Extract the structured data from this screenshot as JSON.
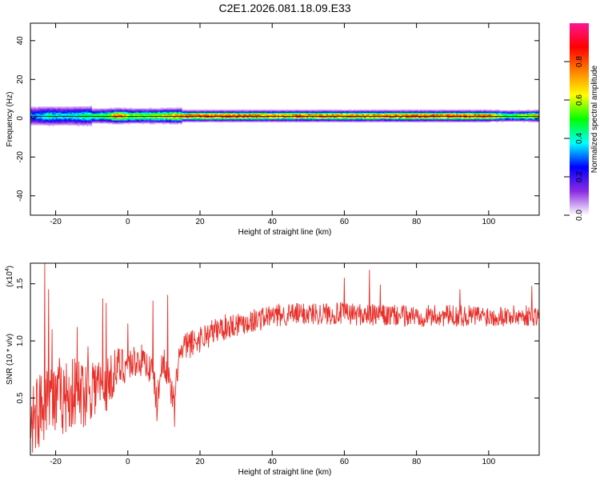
{
  "title": "C2E1.2026.081.18.09.E33",
  "chart_data": [
    {
      "type": "heatmap",
      "xlabel": "Height of straight line (km)",
      "ylabel": "Frequency (Hz)",
      "xlim": [
        -27,
        114
      ],
      "ylim": [
        -50,
        49
      ],
      "xticks": [
        -20,
        0,
        20,
        40,
        60,
        80,
        100
      ],
      "yticks": [
        -40,
        -20,
        0,
        20,
        40
      ],
      "reference_line_y": 1,
      "colorbar": {
        "label": "Normalized spectral amplitude",
        "range": [
          0,
          1
        ],
        "ticks": [
          0.0,
          0.2,
          0.4,
          0.6,
          0.8
        ],
        "colors": [
          "#ffffff",
          "#8a2be2",
          "#0000ff",
          "#00ffff",
          "#00ff00",
          "#ffff00",
          "#ff8000",
          "#ff0000",
          "#ff1493"
        ]
      },
      "band": {
        "center_freq_hz": 1,
        "half_width_hz": 2,
        "peak_level_by_height": [
          [
            -26,
            0.35
          ],
          [
            -22,
            0.45
          ],
          [
            -18,
            0.4
          ],
          [
            -14,
            0.45
          ],
          [
            -10,
            0.5
          ],
          [
            -6,
            0.6
          ],
          [
            -3,
            0.85
          ],
          [
            0,
            0.65
          ],
          [
            5,
            0.6
          ],
          [
            10,
            0.7
          ],
          [
            15,
            0.85
          ],
          [
            20,
            0.9
          ],
          [
            30,
            0.9
          ],
          [
            40,
            0.85
          ],
          [
            50,
            0.85
          ],
          [
            60,
            0.85
          ],
          [
            70,
            0.85
          ],
          [
            80,
            0.9
          ],
          [
            90,
            0.9
          ],
          [
            100,
            0.85
          ],
          [
            105,
            0.55
          ],
          [
            114,
            0.75
          ]
        ]
      }
    },
    {
      "type": "line",
      "xlabel": "Height of straight line (km)",
      "ylabel": "SNR (10 * v/v)",
      "yscale_label": "(x10",
      "yscale_exponent": "4",
      "xlim": [
        -27,
        114
      ],
      "ylim": [
        0.0,
        1.68
      ],
      "xticks": [
        -20,
        0,
        20,
        40,
        60,
        80,
        100
      ],
      "yticks": [
        0.5,
        1.0,
        1.5
      ],
      "series": [
        {
          "color": "#e8302a",
          "trend": [
            [
              -27,
              0.35
            ],
            [
              -24,
              0.4
            ],
            [
              -22,
              0.6
            ],
            [
              -20,
              0.45
            ],
            [
              -18,
              0.5
            ],
            [
              -15,
              0.55
            ],
            [
              -12,
              0.55
            ],
            [
              -10,
              0.62
            ],
            [
              -6,
              0.6
            ],
            [
              -4,
              0.72
            ],
            [
              -2,
              0.78
            ],
            [
              0,
              0.8
            ],
            [
              3,
              0.83
            ],
            [
              5,
              0.82
            ],
            [
              7,
              0.7
            ],
            [
              8,
              0.45
            ],
            [
              9,
              0.7
            ],
            [
              10,
              0.85
            ],
            [
              12,
              0.55
            ],
            [
              13,
              0.45
            ],
            [
              14,
              0.85
            ],
            [
              16,
              0.95
            ],
            [
              20,
              1.02
            ],
            [
              25,
              1.1
            ],
            [
              30,
              1.15
            ],
            [
              35,
              1.18
            ],
            [
              40,
              1.22
            ],
            [
              50,
              1.24
            ],
            [
              60,
              1.24
            ],
            [
              70,
              1.22
            ],
            [
              80,
              1.22
            ],
            [
              90,
              1.22
            ],
            [
              100,
              1.22
            ],
            [
              110,
              1.22
            ],
            [
              114,
              1.22
            ]
          ],
          "spikes": [
            [
              -23,
              1.68
            ],
            [
              -22,
              1.45
            ],
            [
              -21,
              1.1
            ],
            [
              -19,
              0.85
            ],
            [
              -14,
              1.12
            ],
            [
              -11,
              0.95
            ],
            [
              -7,
              1.37
            ],
            [
              -6,
              1.33
            ],
            [
              0,
              1.15
            ],
            [
              7,
              1.35
            ],
            [
              8,
              0.3
            ],
            [
              11,
              1.4
            ],
            [
              13,
              0.25
            ],
            [
              60,
              1.55
            ],
            [
              67,
              1.62
            ],
            [
              70,
              1.49
            ],
            [
              92,
              1.45
            ],
            [
              112,
              1.48
            ]
          ],
          "noise_amplitude": [
            [
              -27,
              0.35
            ],
            [
              -10,
              0.3
            ],
            [
              0,
              0.15
            ],
            [
              20,
              0.12
            ],
            [
              40,
              0.1
            ],
            [
              114,
              0.09
            ]
          ]
        }
      ]
    }
  ]
}
